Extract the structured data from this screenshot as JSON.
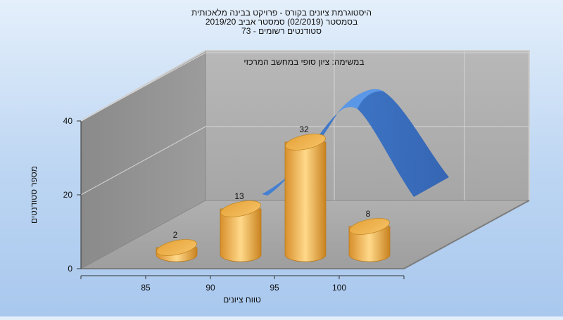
{
  "chart_data": {
    "type": "bar",
    "title_lines": [
      "היסטוגרמת ציונים בקורס - פרויקט בבינה מלאכותית",
      "בסמסטר  (02/2019)  סמסטר אביב 2019/20",
      "סטודנטים רשומים - 73"
    ],
    "annotation": "במשימה: ציון סופי במחשב המרכזי",
    "xlabel": "טווח ציונים",
    "ylabel": "מספר סטודנטים",
    "categories": [
      "85",
      "90",
      "95",
      "100"
    ],
    "values": [
      2,
      13,
      32,
      8
    ],
    "ylim": [
      0,
      40
    ],
    "yticks": [
      0,
      20,
      40
    ],
    "bar_color": "#f0b552",
    "curve_color": "#3a73c8",
    "wall_color": "#a8a8a8",
    "legend": "none",
    "grid": true
  }
}
